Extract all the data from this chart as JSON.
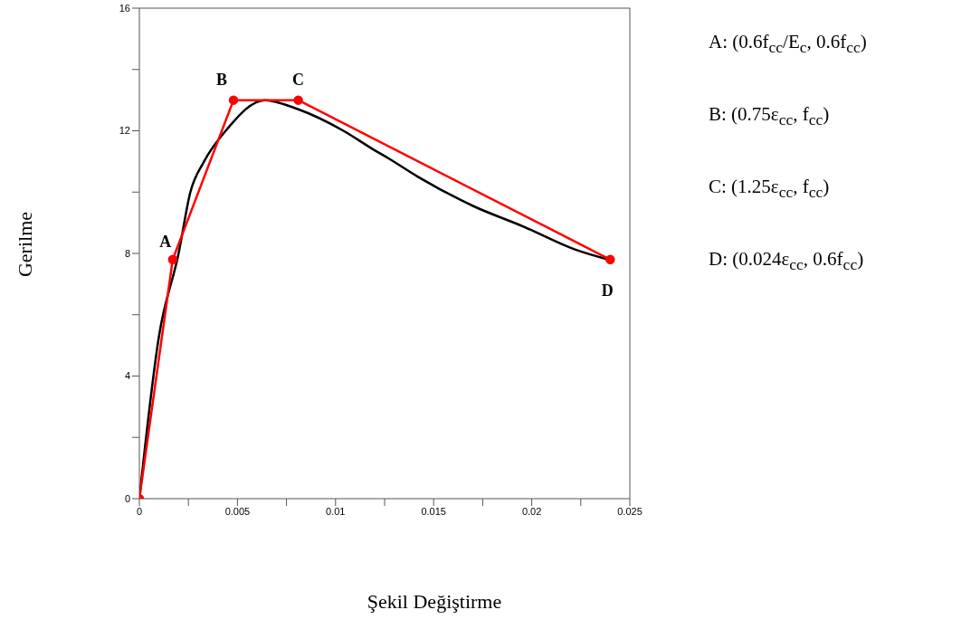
{
  "chart_data": {
    "type": "line",
    "xlabel": "Şekil Değiştirme",
    "ylabel": "Gerilme",
    "xlim": [
      0,
      0.025
    ],
    "ylim": [
      0,
      16
    ],
    "xticks": [
      0,
      {
        "value": 0.0025,
        "label": null
      },
      0.005,
      {
        "value": 0.0075,
        "label": null
      },
      0.01,
      {
        "value": 0.0125,
        "label": null
      },
      0.015,
      {
        "value": 0.0175,
        "label": null
      },
      0.02,
      {
        "value": 0.0225,
        "label": null
      },
      0.025
    ],
    "yticks": [
      0,
      {
        "value": 2,
        "label": null
      },
      4,
      {
        "value": 6,
        "label": null
      },
      8,
      {
        "value": 10,
        "label": null
      },
      12,
      {
        "value": 14,
        "label": null
      },
      16
    ],
    "grid": false,
    "series": [
      {
        "color": "#000000",
        "marker": "none",
        "x": [
          0,
          0.001,
          0.002,
          0.0026,
          0.0033,
          0.0044,
          0.0064,
          0.0081,
          0.0104,
          0.0119,
          0.0127,
          0.0142,
          0.017,
          0.0196,
          0.0222,
          0.0239
        ],
        "values": [
          0,
          5.3,
          8,
          10,
          11,
          12,
          13,
          12.7,
          12,
          11.4,
          11.1,
          10.5,
          9.55,
          8.87,
          8.13,
          7.8
        ]
      },
      {
        "color": "#ff0000",
        "marker": "circle",
        "x": [
          0,
          0.0017,
          0.0048,
          0.0081,
          0.024
        ],
        "values": [
          0,
          7.8,
          13,
          13,
          7.8
        ]
      }
    ],
    "annotations": [
      {
        "text": "A",
        "x": 0.0017,
        "y": 7.8
      },
      {
        "text": "B",
        "x": 0.0048,
        "y": 13
      },
      {
        "text": "C",
        "x": 0.0081,
        "y": 13
      },
      {
        "text": "D",
        "x": 0.024,
        "y": 7.8
      },
      "A: (0.6f$_{cc}$/E$_{c}$, 0.6f$_{cc}$)",
      "B: (0.75ε$_{cc}$, f$_{cc}$)",
      "C: (1.25ε$_{cc}$, f$_{cc}$)",
      "D: (0.024ε$_{cc}$, 0.6f$_{cc}$)"
    ]
  }
}
